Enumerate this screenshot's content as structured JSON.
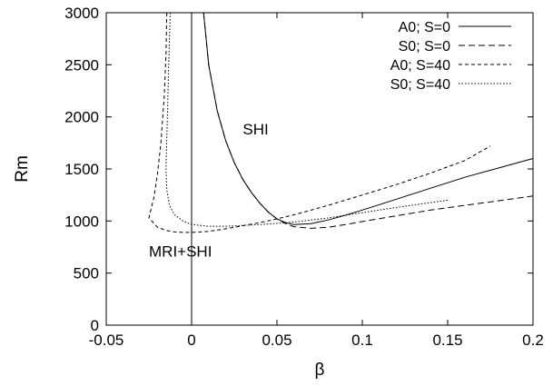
{
  "chart_data": {
    "type": "line",
    "xlabel": "β",
    "ylabel": "Rm",
    "xlim": [
      -0.05,
      0.2
    ],
    "ylim": [
      0,
      3000
    ],
    "xticks": [
      -0.05,
      0,
      0.05,
      0.1,
      0.15,
      0.2
    ],
    "xtick_labels": [
      "-0.05",
      "0",
      "0.05",
      "0.1",
      "0.15",
      "0.2"
    ],
    "yticks": [
      0,
      500,
      1000,
      1500,
      2000,
      2500,
      3000
    ],
    "ytick_labels": [
      "0",
      "500",
      "1000",
      "1500",
      "2000",
      "2500",
      "3000"
    ],
    "grid": false,
    "legend_position": "top-right",
    "annotations": [
      {
        "text": "SHI",
        "x": 0.03,
        "y": 1830
      },
      {
        "text": "MRI+SHI",
        "x": -0.025,
        "y": 660
      }
    ],
    "vertical_line_x": 0,
    "series": [
      {
        "name": "A0; S=0",
        "style": "solid",
        "x": [
          0.007,
          0.01,
          0.015,
          0.02,
          0.025,
          0.03,
          0.035,
          0.04,
          0.045,
          0.05,
          0.055,
          0.06,
          0.07,
          0.08,
          0.09,
          0.1,
          0.12,
          0.14,
          0.16,
          0.18,
          0.2
        ],
        "y": [
          3000,
          2500,
          2060,
          1770,
          1560,
          1400,
          1275,
          1170,
          1085,
          1020,
          985,
          965,
          975,
          1010,
          1055,
          1105,
          1210,
          1315,
          1420,
          1510,
          1600
        ]
      },
      {
        "name": "S0; S=0",
        "style": "dashed",
        "x": [
          0.007,
          0.01,
          0.015,
          0.02,
          0.025,
          0.03,
          0.035,
          0.04,
          0.045,
          0.05,
          0.055,
          0.06,
          0.07,
          0.08,
          0.09,
          0.1,
          0.12,
          0.14,
          0.16,
          0.18,
          0.2
        ],
        "y": [
          3000,
          2500,
          2060,
          1770,
          1560,
          1400,
          1275,
          1170,
          1085,
          1020,
          975,
          945,
          930,
          940,
          965,
          995,
          1050,
          1105,
          1150,
          1195,
          1240
        ]
      },
      {
        "name": "A0; S=40",
        "style": "short-dashed",
        "x": [
          -0.0145,
          -0.015,
          -0.016,
          -0.018,
          -0.02,
          -0.022,
          -0.025,
          -0.02,
          -0.015,
          -0.01,
          -0.005,
          0,
          0.01,
          0.02,
          0.03,
          0.04,
          0.05,
          0.06,
          0.08,
          0.1,
          0.12,
          0.14,
          0.16,
          0.175
        ],
        "y": [
          3000,
          2600,
          2200,
          1750,
          1450,
          1230,
          1030,
          940,
          910,
          895,
          890,
          890,
          900,
          925,
          955,
          985,
          1020,
          1060,
          1150,
          1250,
          1350,
          1460,
          1580,
          1720
        ]
      },
      {
        "name": "S0; S=40",
        "style": "dotted",
        "x": [
          -0.0125,
          -0.013,
          -0.0135,
          -0.014,
          -0.0145,
          -0.015,
          -0.0145,
          -0.013,
          -0.01,
          -0.005,
          0,
          0.01,
          0.02,
          0.04,
          0.06,
          0.08,
          0.1,
          0.12,
          0.15
        ],
        "y": [
          3000,
          2750,
          2450,
          2100,
          1800,
          1500,
          1300,
          1150,
          1060,
          1000,
          965,
          950,
          950,
          965,
          990,
          1030,
          1080,
          1130,
          1200
        ]
      }
    ]
  }
}
